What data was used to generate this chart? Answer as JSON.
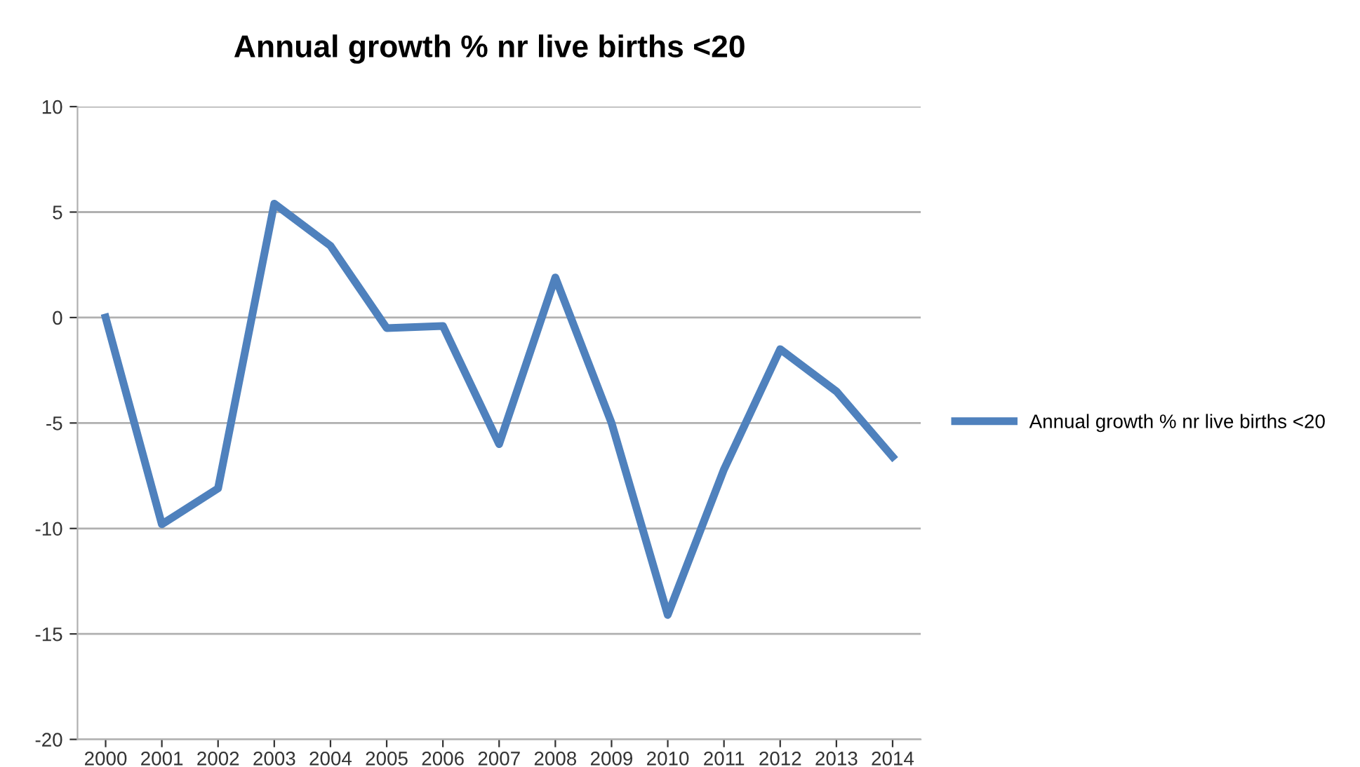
{
  "chart_data": {
    "type": "line",
    "title": "Annual growth % nr live births <20",
    "categories": [
      "2000",
      "2001",
      "2002",
      "2003",
      "2004",
      "2005",
      "2006",
      "2007",
      "2008",
      "2009",
      "2010",
      "2011",
      "2012",
      "2013",
      "2014"
    ],
    "series": [
      {
        "name": "Annual growth % nr live births <20",
        "color": "#4f81bd",
        "values": [
          0,
          -9.8,
          -8.1,
          5.4,
          3.4,
          -0.5,
          -0.4,
          -6,
          1.9,
          -5,
          -14.1,
          -7.2,
          -1.5,
          -3.5,
          -6.6
        ]
      }
    ],
    "ylim": [
      -20,
      10
    ],
    "yticks": [
      -20,
      -15,
      -10,
      -5,
      0,
      5,
      10
    ],
    "grid": "y",
    "legend": "right",
    "marker": "none",
    "line_style": "solid"
  }
}
